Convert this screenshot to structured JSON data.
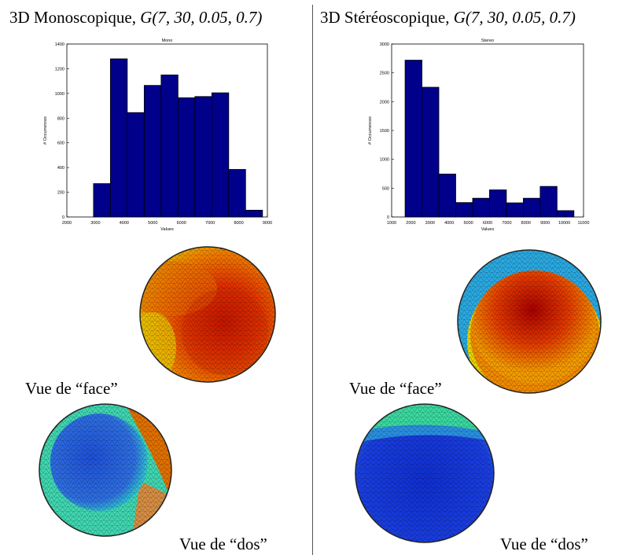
{
  "left": {
    "heading_prefix": "3D Monoscopique, ",
    "heading_formula": "G(7, 30, 0.05, 0.7)",
    "caption_face": "Vue de “face”",
    "caption_dos": "Vue de “dos”"
  },
  "right": {
    "heading_prefix": "3D Stéréoscopique, ",
    "heading_formula": "G(7, 30, 0.05, 0.7)",
    "caption_face": "Vue de “face”",
    "caption_dos": "Vue de “dos”"
  },
  "chart_data": [
    {
      "type": "bar",
      "title": "Mono",
      "xlabel": "Values",
      "ylabel": "# Occurrences",
      "xlim": [
        2000,
        9000
      ],
      "ylim": [
        0,
        1400
      ],
      "xticks": [
        2000,
        3000,
        4000,
        5000,
        6000,
        7000,
        8000,
        9000
      ],
      "yticks": [
        0,
        200,
        400,
        600,
        800,
        1000,
        1200,
        1400
      ],
      "bin_edges": [
        2930,
        3520,
        4110,
        4700,
        5290,
        5880,
        6470,
        7060,
        7650,
        8240,
        8830
      ],
      "values": [
        270,
        1280,
        845,
        1065,
        1150,
        965,
        975,
        1005,
        385,
        55
      ],
      "bar_color": "#00008b",
      "grid": false
    },
    {
      "type": "bar",
      "title": "Stereo",
      "xlabel": "Values",
      "ylabel": "# Occurrences",
      "xlim": [
        1000,
        11000
      ],
      "ylim": [
        0,
        3000
      ],
      "xticks": [
        1000,
        2000,
        3000,
        4000,
        5000,
        6000,
        7000,
        8000,
        9000,
        10000,
        11000
      ],
      "yticks": [
        0,
        500,
        1000,
        1500,
        2000,
        2500,
        3000
      ],
      "bin_edges": [
        1700,
        2580,
        3460,
        4340,
        5220,
        6100,
        6980,
        7860,
        8740,
        9620,
        10500
      ],
      "values": [
        2720,
        2250,
        745,
        250,
        325,
        470,
        245,
        325,
        530,
        110
      ],
      "bar_color": "#00008b",
      "grid": false
    }
  ]
}
